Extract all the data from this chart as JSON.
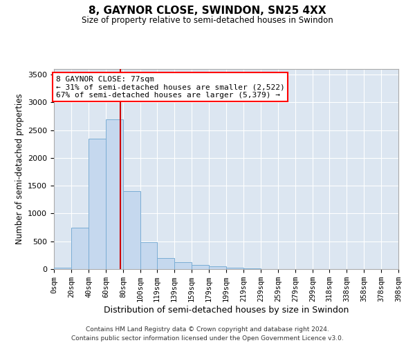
{
  "title": "8, GAYNOR CLOSE, SWINDON, SN25 4XX",
  "subtitle": "Size of property relative to semi-detached houses in Swindon",
  "xlabel": "Distribution of semi-detached houses by size in Swindon",
  "ylabel": "Number of semi-detached properties",
  "footer_line1": "Contains HM Land Registry data © Crown copyright and database right 2024.",
  "footer_line2": "Contains public sector information licensed under the Open Government Licence v3.0.",
  "property_size": 77,
  "annotation_title": "8 GAYNOR CLOSE: 77sqm",
  "annotation_line1": "← 31% of semi-detached houses are smaller (2,522)",
  "annotation_line2": "67% of semi-detached houses are larger (5,379) →",
  "bar_color": "#c5d8ee",
  "bar_edge_color": "#7aadd4",
  "line_color": "#cc0000",
  "background_color": "#dce6f1",
  "bins": [
    0,
    20,
    40,
    60,
    80,
    100,
    119,
    139,
    159,
    179,
    199,
    219,
    239,
    259,
    279,
    299,
    318,
    338,
    358,
    378,
    398
  ],
  "bin_labels": [
    "0sqm",
    "20sqm",
    "40sqm",
    "60sqm",
    "80sqm",
    "100sqm",
    "119sqm",
    "139sqm",
    "159sqm",
    "179sqm",
    "199sqm",
    "219sqm",
    "239sqm",
    "259sqm",
    "279sqm",
    "299sqm",
    "318sqm",
    "338sqm",
    "358sqm",
    "378sqm",
    "398sqm"
  ],
  "bar_heights": [
    25,
    750,
    2350,
    2700,
    1400,
    480,
    200,
    120,
    80,
    50,
    30,
    10,
    5,
    0,
    0,
    0,
    0,
    0,
    0,
    0
  ],
  "ylim": [
    0,
    3600
  ],
  "yticks": [
    0,
    500,
    1000,
    1500,
    2000,
    2500,
    3000,
    3500
  ]
}
